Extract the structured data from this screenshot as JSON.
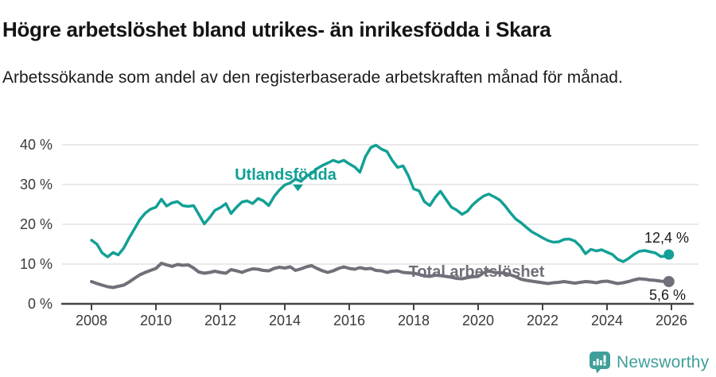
{
  "chart_data": {
    "type": "line",
    "title": "Högre arbetslöshet bland utrikes- än inrikesfödda i Skara",
    "subtitle": "Arbetssökande som andel av den registerbaserade arbetskraften månad för månad.",
    "xlabel": "",
    "ylabel": "",
    "grid": "horizontal",
    "legend_position": "inline-labels",
    "xlim": [
      2007.1,
      2026.7
    ],
    "ylim": [
      0,
      42.5
    ],
    "x_ticks": {
      "values": [
        2008,
        2010,
        2012,
        2014,
        2016,
        2018,
        2020,
        2022,
        2024,
        2026
      ],
      "labels": [
        "2008",
        "2010",
        "2012",
        "2014",
        "2016",
        "2018",
        "2020",
        "2022",
        "2024",
        "2026"
      ]
    },
    "y_ticks": {
      "values": [
        0,
        10,
        20,
        30,
        40
      ],
      "labels": [
        "0 %",
        "10 %",
        "20 %",
        "30 %",
        "40 %"
      ]
    },
    "x": [
      2008.0,
      2008.17,
      2008.33,
      2008.5,
      2008.67,
      2008.83,
      2009.0,
      2009.17,
      2009.33,
      2009.5,
      2009.67,
      2009.83,
      2010.0,
      2010.17,
      2010.33,
      2010.5,
      2010.67,
      2010.83,
      2011.0,
      2011.17,
      2011.33,
      2011.5,
      2011.67,
      2011.83,
      2012.0,
      2012.17,
      2012.33,
      2012.5,
      2012.67,
      2012.83,
      2013.0,
      2013.17,
      2013.33,
      2013.5,
      2013.67,
      2013.83,
      2014.0,
      2014.17,
      2014.33,
      2014.5,
      2014.67,
      2014.83,
      2015.0,
      2015.17,
      2015.33,
      2015.5,
      2015.67,
      2015.83,
      2016.0,
      2016.17,
      2016.33,
      2016.5,
      2016.67,
      2016.83,
      2017.0,
      2017.17,
      2017.33,
      2017.5,
      2017.67,
      2017.83,
      2018.0,
      2018.17,
      2018.33,
      2018.5,
      2018.67,
      2018.83,
      2019.0,
      2019.17,
      2019.33,
      2019.5,
      2019.67,
      2019.83,
      2020.0,
      2020.17,
      2020.33,
      2020.5,
      2020.67,
      2020.83,
      2021.0,
      2021.17,
      2021.33,
      2021.5,
      2021.67,
      2021.83,
      2022.0,
      2022.17,
      2022.33,
      2022.5,
      2022.67,
      2022.83,
      2023.0,
      2023.17,
      2023.33,
      2023.5,
      2023.67,
      2023.83,
      2024.0,
      2024.17,
      2024.33,
      2024.5,
      2024.67,
      2024.83,
      2025.0,
      2025.17,
      2025.33,
      2025.5,
      2025.67,
      2025.83,
      2025.92
    ],
    "series": [
      {
        "name": "Utlandsfödda",
        "color": "#12a095",
        "end_label": "12,4 %",
        "end_value": 12.4,
        "values": [
          16.0,
          15.0,
          12.8,
          11.8,
          12.9,
          12.3,
          14.0,
          16.6,
          18.8,
          21.2,
          22.8,
          23.8,
          24.3,
          26.3,
          24.6,
          25.4,
          25.7,
          24.7,
          24.5,
          24.7,
          22.5,
          20.1,
          21.7,
          23.5,
          24.2,
          25.2,
          22.7,
          24.3,
          25.6,
          25.9,
          25.2,
          26.5,
          25.9,
          24.7,
          27.0,
          28.6,
          29.9,
          30.4,
          31.4,
          30.8,
          32.1,
          32.8,
          34.0,
          34.8,
          35.4,
          36.1,
          35.6,
          36.1,
          35.2,
          34.4,
          33.1,
          37.0,
          39.3,
          39.9,
          38.9,
          38.3,
          36.1,
          34.3,
          34.7,
          32.3,
          28.9,
          28.4,
          25.7,
          24.7,
          26.8,
          28.3,
          26.3,
          24.3,
          23.6,
          22.5,
          23.3,
          24.9,
          26.1,
          27.1,
          27.6,
          26.9,
          26.1,
          24.7,
          22.9,
          21.3,
          20.4,
          19.2,
          18.1,
          17.4,
          16.6,
          15.9,
          15.5,
          15.6,
          16.2,
          16.3,
          15.8,
          14.5,
          12.6,
          13.7,
          13.3,
          13.6,
          13.0,
          12.4,
          11.2,
          10.6,
          11.4,
          12.4,
          13.2,
          13.4,
          13.1,
          12.8,
          11.9,
          12.0,
          12.4
        ]
      },
      {
        "name": "Total arbetslöshet",
        "color": "#70707a",
        "end_label": "5,6 %",
        "end_value": 5.6,
        "values": [
          5.6,
          5.1,
          4.7,
          4.3,
          4.1,
          4.4,
          4.7,
          5.5,
          6.4,
          7.3,
          7.9,
          8.4,
          8.9,
          10.2,
          9.8,
          9.4,
          9.9,
          9.7,
          9.8,
          9.0,
          8.0,
          7.7,
          7.9,
          8.2,
          7.9,
          7.7,
          8.6,
          8.3,
          7.9,
          8.4,
          8.8,
          8.7,
          8.4,
          8.3,
          8.9,
          9.2,
          9.0,
          9.3,
          8.4,
          8.8,
          9.3,
          9.6,
          8.9,
          8.3,
          7.9,
          8.3,
          8.9,
          9.3,
          8.9,
          8.7,
          9.1,
          8.8,
          8.9,
          8.4,
          8.3,
          7.9,
          8.2,
          8.3,
          7.9,
          7.8,
          7.7,
          7.4,
          7.0,
          6.9,
          7.2,
          7.1,
          6.9,
          6.7,
          6.4,
          6.3,
          6.6,
          6.8,
          6.9,
          7.8,
          8.3,
          7.9,
          7.8,
          7.7,
          7.3,
          6.8,
          6.2,
          5.9,
          5.7,
          5.5,
          5.3,
          5.1,
          5.3,
          5.4,
          5.6,
          5.4,
          5.2,
          5.4,
          5.6,
          5.5,
          5.3,
          5.6,
          5.7,
          5.4,
          5.1,
          5.3,
          5.6,
          6.0,
          6.3,
          6.2,
          6.0,
          5.9,
          5.7,
          5.6,
          5.6
        ]
      }
    ],
    "colors": {
      "grid": "#dcdcdc",
      "axis": "#444444",
      "tick_text": "#3a3a3a",
      "value_text": "#1a1a1a"
    }
  },
  "footer": {
    "brand": "Newsworthy",
    "brand_color": "#3f9f99"
  }
}
